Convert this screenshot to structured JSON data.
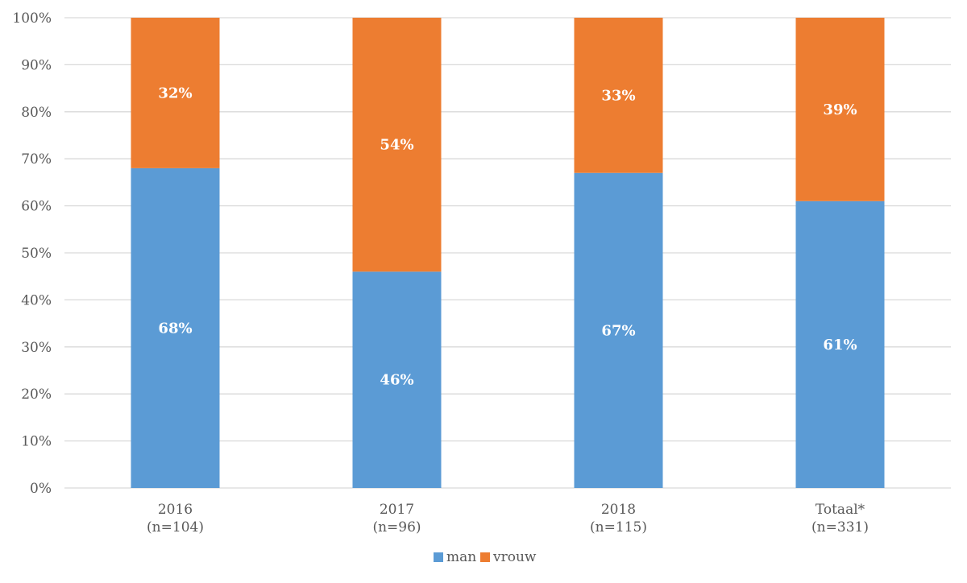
{
  "chart_data": {
    "type": "bar",
    "stacked": true,
    "categories": [
      [
        "2016",
        "(n=104)"
      ],
      [
        "2017",
        "(n=96)"
      ],
      [
        "2018",
        "(n=115)"
      ],
      [
        "Totaal*",
        "(n=331)"
      ]
    ],
    "series": [
      {
        "name": "man",
        "color": "#5b9bd5",
        "values": [
          68,
          46,
          67,
          61
        ],
        "labels": [
          "68%",
          "46%",
          "67%",
          "61%"
        ]
      },
      {
        "name": "vrouw",
        "color": "#ed7d31",
        "values": [
          32,
          54,
          33,
          39
        ],
        "labels": [
          "32%",
          "54%",
          "33%",
          "39%"
        ]
      }
    ],
    "ylim": [
      0,
      100
    ],
    "yticks": [
      "0%",
      "10%",
      "20%",
      "30%",
      "40%",
      "50%",
      "60%",
      "70%",
      "80%",
      "90%",
      "100%"
    ],
    "grid": true,
    "legend_position": "bottom"
  }
}
